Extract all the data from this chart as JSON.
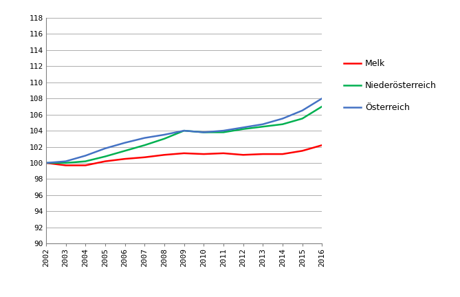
{
  "years": [
    2002,
    2003,
    2004,
    2005,
    2006,
    2007,
    2008,
    2009,
    2010,
    2011,
    2012,
    2013,
    2014,
    2015,
    2016
  ],
  "melk": [
    100.0,
    99.7,
    99.7,
    100.2,
    100.5,
    100.7,
    101.0,
    101.2,
    101.1,
    101.2,
    101.0,
    101.1,
    101.1,
    101.5,
    102.2
  ],
  "niederoesterreich": [
    100.0,
    100.0,
    100.2,
    100.8,
    101.5,
    102.2,
    103.0,
    104.0,
    103.8,
    103.8,
    104.2,
    104.5,
    104.8,
    105.5,
    107.0
  ],
  "oesterreich": [
    100.0,
    100.2,
    100.9,
    101.8,
    102.5,
    103.1,
    103.5,
    104.0,
    103.8,
    104.0,
    104.4,
    104.8,
    105.5,
    106.5,
    108.0
  ],
  "melk_color": "#ff0000",
  "niederoe_color": "#00b050",
  "oe_color": "#4472c4",
  "line_width": 1.8,
  "ylim": [
    90,
    118
  ],
  "ytick_step": 2,
  "legend_labels": [
    "Melk",
    "Niederösterreich",
    "Österreich"
  ],
  "background_color": "#ffffff",
  "grid_color": "#a0a0a0"
}
